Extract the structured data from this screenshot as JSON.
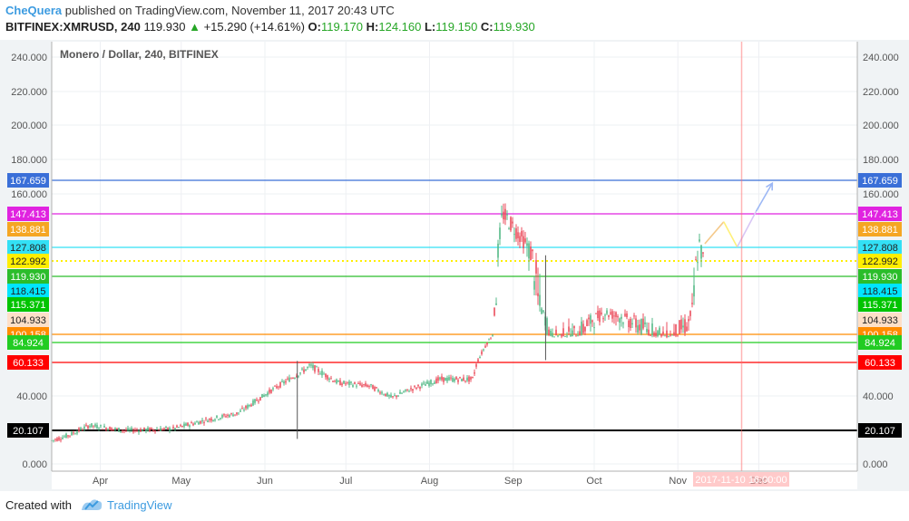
{
  "header": {
    "author": "CheQuera",
    "published_text": "published on TradingView.com, November 11, 2017 20:43 UTC",
    "symbol": "BITFINEX:XMRUSD, 240",
    "last": "119.930",
    "change": "+15.290 (+14.61%)",
    "o_label": "O:",
    "o_value": "119.170",
    "h_label": "H:",
    "h_value": "124.160",
    "l_label": "L:",
    "l_value": "119.150",
    "c_label": "C:",
    "c_value": "119.930"
  },
  "chart_data": {
    "type": "candlestick",
    "title": "Monero / Dollar, 240, BITFINEX",
    "x_labels": [
      "Apr",
      "May",
      "Jun",
      "Jul",
      "Aug",
      "Sep",
      "Oct",
      "Nov",
      "Dec"
    ],
    "y_tick_labels": [
      "240.000",
      "220.000",
      "200.000",
      "180.000",
      "160.000",
      "40.000",
      "0.000"
    ],
    "ylim": [
      0,
      250
    ],
    "horizontal_levels": [
      {
        "value": 167.659,
        "label": "167.659",
        "color": "#3a6fd8",
        "line": "solid"
      },
      {
        "value": 147.413,
        "label": "147.413",
        "color": "#e023e0",
        "line": "solid"
      },
      {
        "value": 138.881,
        "label": "138.881",
        "color": "#f5a623",
        "line": "none"
      },
      {
        "value": 127.808,
        "label": "127.808",
        "color": "#33e0f5",
        "line": "solid"
      },
      {
        "value": 122.992,
        "label": "122.992",
        "color": "#ffee00",
        "line": "dotted"
      },
      {
        "value": 119.93,
        "label": "119.930",
        "color": "#2bbd2b",
        "line": "solid"
      },
      {
        "value": 118.415,
        "label": "118.415",
        "color": "#00e5ff",
        "line": "none"
      },
      {
        "value": 115.371,
        "label": "115.371",
        "color": "#00c400",
        "line": "none"
      },
      {
        "value": 104.933,
        "label": "104.933",
        "color": "#fde0c8",
        "line": "none"
      },
      {
        "value": 100.158,
        "label": "100.158",
        "color": "#ff8c00",
        "line": "solid"
      },
      {
        "value": 84.924,
        "label": "84.924",
        "color": "#22cc22",
        "line": "solid"
      },
      {
        "value": 60.133,
        "label": "60.133",
        "color": "#ff0000",
        "line": "solid"
      },
      {
        "value": 20.107,
        "label": "20.107",
        "color": "#000000",
        "line": "solid"
      }
    ],
    "price_path": [
      {
        "x": "Mar 14",
        "y": 14
      },
      {
        "x": "Mar 20",
        "y": 17
      },
      {
        "x": "Mar 28",
        "y": 23
      },
      {
        "x": "Apr 10",
        "y": 20
      },
      {
        "x": "Apr 28",
        "y": 21
      },
      {
        "x": "May 10",
        "y": 26
      },
      {
        "x": "May 22",
        "y": 30
      },
      {
        "x": "Jun 5",
        "y": 45
      },
      {
        "x": "Jun 18",
        "y": 58
      },
      {
        "x": "Jun 28",
        "y": 48
      },
      {
        "x": "Jul 10",
        "y": 46
      },
      {
        "x": "Jul 18",
        "y": 39
      },
      {
        "x": "Jul 25",
        "y": 44
      },
      {
        "x": "Aug 5",
        "y": 50
      },
      {
        "x": "Aug 17",
        "y": 50
      },
      {
        "x": "Aug 24",
        "y": 96
      },
      {
        "x": "Aug 28",
        "y": 148
      },
      {
        "x": "Sep 2",
        "y": 138
      },
      {
        "x": "Sep 8",
        "y": 125
      },
      {
        "x": "Sep 15",
        "y": 98
      },
      {
        "x": "Sep 25",
        "y": 100
      },
      {
        "x": "Oct 5",
        "y": 110
      },
      {
        "x": "Oct 20",
        "y": 102
      },
      {
        "x": "Oct 28",
        "y": 98
      },
      {
        "x": "Nov 5",
        "y": 104
      },
      {
        "x": "Nov 9",
        "y": 130
      },
      {
        "x": "Nov 11",
        "y": 119.93
      }
    ],
    "projection_path": [
      {
        "x": "Nov 11",
        "y": 130
      },
      {
        "x": "Nov 18",
        "y": 143
      },
      {
        "x": "Nov 23",
        "y": 128
      },
      {
        "x": "Nov 30",
        "y": 149
      },
      {
        "x": "Dec 6",
        "y": 166
      }
    ],
    "cursor_label": "2017-11-10 16:00:00"
  },
  "footer": {
    "created_with": "Created with",
    "brand": "TradingView"
  }
}
